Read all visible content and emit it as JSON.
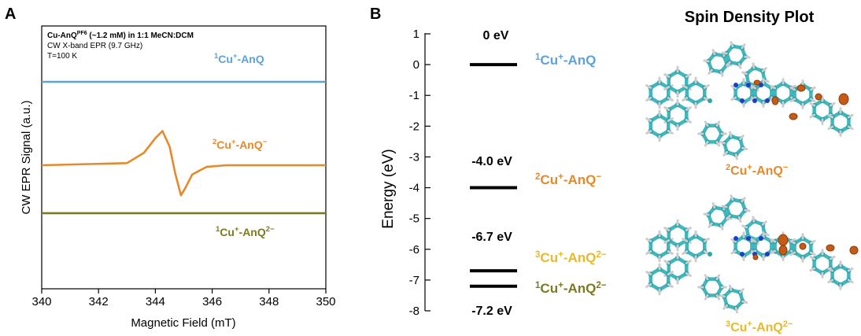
{
  "panel_a": {
    "label": "A",
    "info": {
      "line1_main": "Cu-AnQ",
      "line1_sup": "PF6",
      "line1_rest": " (~1.2 mM) in 1:1 MeCN:DCM",
      "line2": "CW X-band EPR (9.7 GHz)",
      "line3": "T=100 K"
    }
  },
  "panel_b": {
    "label": "B",
    "spin_title": "Spin Density Plot",
    "molecule_captions": [
      {
        "base": "2",
        "main": "Cu",
        "sup": "+",
        "rest": "-AnQ",
        "sup2": "−",
        "color": "#E58A2A"
      },
      {
        "base": "3",
        "main": "Cu",
        "sup": "+",
        "rest": "-AnQ",
        "sup2": "2−",
        "color": "#E8B92A"
      }
    ]
  },
  "chart_data": [
    {
      "type": "line",
      "xlabel": "Magnetic Field (mT)",
      "ylabel": "CW EPR Signal (a.u.)",
      "xlim": [
        340,
        350
      ],
      "xticks": [
        "340",
        "342",
        "344",
        "346",
        "348",
        "350"
      ],
      "grid": false,
      "series": [
        {
          "name": "1Cu+-AnQ",
          "color": "#5BA3DA",
          "x": [
            340,
            350
          ],
          "y": [
            0,
            0
          ],
          "offset": 2.0
        },
        {
          "name": "2Cu+-AnQ−",
          "color": "#E58A2A",
          "x": [
            340,
            343.0,
            343.6,
            344.0,
            344.25,
            344.5,
            344.7,
            344.9,
            345.05,
            345.3,
            345.8,
            346.5,
            348,
            350
          ],
          "y": [
            0,
            0.05,
            0.3,
            0.65,
            0.82,
            0.45,
            -0.2,
            -0.72,
            -0.55,
            -0.22,
            -0.04,
            0,
            0,
            0
          ],
          "offset": 0.0
        },
        {
          "name": "1Cu+-AnQ2−",
          "color": "#7A7A1E",
          "x": [
            340,
            350
          ],
          "y": [
            0,
            0
          ],
          "offset": -1.15
        }
      ],
      "labels": [
        {
          "base": "1",
          "main": "Cu",
          "sup": "+",
          "rest": "-AnQ",
          "sup2": "",
          "color": "#5BA3DA"
        },
        {
          "base": "2",
          "main": "Cu",
          "sup": "+",
          "rest": "-AnQ",
          "sup2": "−",
          "color": "#E58A2A"
        },
        {
          "base": "1",
          "main": "Cu",
          "sup": "+",
          "rest": "-AnQ",
          "sup2": "2−",
          "color": "#7A7A1E"
        }
      ]
    },
    {
      "type": "bar",
      "ylabel": "Energy (eV)",
      "ylim": [
        -8,
        1
      ],
      "yticks": [
        "1",
        "0",
        "-1",
        "-2",
        "-3",
        "-4",
        "-5",
        "-6",
        "-7",
        "-8"
      ],
      "levels": [
        {
          "state": "1Cu+-AnQ",
          "energy": 0.0,
          "energy_label": "0 eV",
          "base": "1",
          "main": "Cu",
          "sup": "+",
          "rest": "-AnQ",
          "sup2": "",
          "color": "#5BA3DA"
        },
        {
          "state": "2Cu+-AnQ−",
          "energy": -4.0,
          "energy_label": "-4.0 eV",
          "base": "2",
          "main": "Cu",
          "sup": "+",
          "rest": "-AnQ",
          "sup2": "−",
          "color": "#E58A2A"
        },
        {
          "state": "3Cu+-AnQ2−",
          "energy": -6.7,
          "energy_label": "-6.7 eV",
          "base": "3",
          "main": "Cu",
          "sup": "+",
          "rest": "-AnQ",
          "sup2": "2−",
          "color": "#E8B92A"
        },
        {
          "state": "1Cu+-AnQ2−",
          "energy": -7.2,
          "energy_label": "-7.2 eV",
          "base": "1",
          "main": "Cu",
          "sup": "+",
          "rest": "-AnQ",
          "sup2": "2−",
          "color": "#7A7A1E"
        }
      ]
    }
  ]
}
